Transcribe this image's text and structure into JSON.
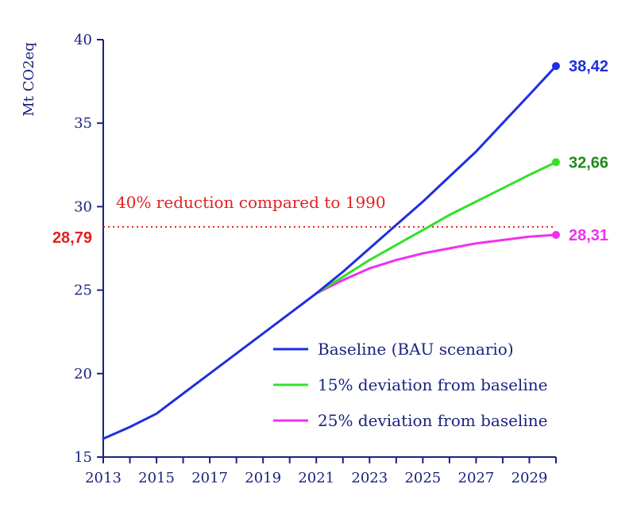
{
  "chart_data": {
    "type": "line",
    "ylabel": "Mt  CO2eq",
    "xlim": [
      2013,
      2030
    ],
    "ylim": [
      15,
      40
    ],
    "x_ticks": [
      "2013",
      "2015",
      "2017",
      "2019",
      "2021",
      "2023",
      "2025",
      "2027",
      "2029"
    ],
    "y_ticks": [
      "15",
      "20",
      "25",
      "30",
      "35",
      "40"
    ],
    "grid": false,
    "legend_position": "lower-right",
    "series": [
      {
        "name": "Baseline (BAU scenario)",
        "color": "#1f2fe0",
        "x": [
          2013,
          2014,
          2015,
          2016,
          2017,
          2018,
          2019,
          2020,
          2021,
          2022,
          2023,
          2024,
          2025,
          2026,
          2027,
          2028,
          2029,
          2030
        ],
        "y": [
          16.1,
          16.8,
          17.6,
          18.8,
          20.0,
          21.2,
          22.4,
          23.6,
          24.8,
          26.1,
          27.5,
          28.9,
          30.3,
          31.8,
          33.3,
          35.0,
          36.7,
          38.42
        ],
        "end_label": "38,42"
      },
      {
        "name": "15% deviation from baseline",
        "color": "#33e02a",
        "x": [
          2021,
          2022,
          2023,
          2024,
          2025,
          2026,
          2027,
          2028,
          2029,
          2030
        ],
        "y": [
          24.8,
          25.8,
          26.8,
          27.7,
          28.6,
          29.5,
          30.3,
          31.1,
          31.9,
          32.66
        ],
        "end_label": "32,66",
        "end_label_color": "#1d8a1d"
      },
      {
        "name": "25% deviation from baseline",
        "color": "#f030f0",
        "x": [
          2021,
          2022,
          2023,
          2024,
          2025,
          2026,
          2027,
          2028,
          2029,
          2030
        ],
        "y": [
          24.8,
          25.6,
          26.3,
          26.8,
          27.2,
          27.5,
          27.8,
          28.0,
          28.2,
          28.31
        ],
        "end_label": "28,31"
      }
    ],
    "reference_line": {
      "value": 28.79,
      "value_label": "28,79",
      "text": "40% reduction compared to 1990",
      "color": "#e32020",
      "style": "dotted"
    }
  }
}
